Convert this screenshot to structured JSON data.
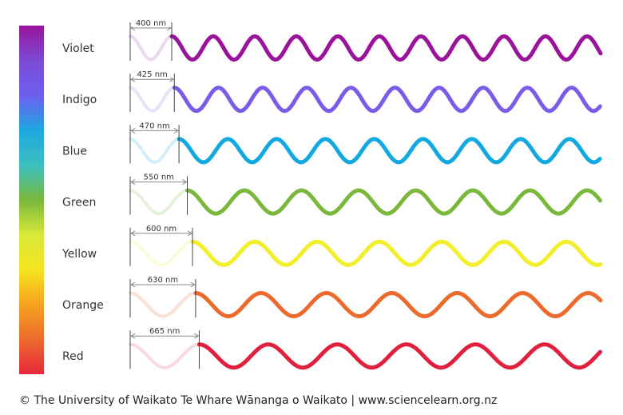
{
  "spectrum_bar": {
    "colors": [
      "#9b139b",
      "#7b4bd6",
      "#6d5ff0",
      "#1ea8e0",
      "#3cc0c0",
      "#7ab83c",
      "#d8e83a",
      "#f5e51f",
      "#f5a21f",
      "#ec6a2c",
      "#e8283c"
    ]
  },
  "waves": [
    {
      "name": "Violet",
      "wavelength": "400 nm",
      "nm": 400,
      "color": "#9b139b",
      "ghost": "#ead9ef"
    },
    {
      "name": "Indigo",
      "wavelength": "425 nm",
      "nm": 425,
      "color": "#7b5ce8",
      "ghost": "#e6e2fb"
    },
    {
      "name": "Blue",
      "wavelength": "470 nm",
      "nm": 470,
      "color": "#12a8e0",
      "ghost": "#d3eef9"
    },
    {
      "name": "Green",
      "wavelength": "550 nm",
      "nm": 550,
      "color": "#7ab83c",
      "ghost": "#e6f1dc"
    },
    {
      "name": "Yellow",
      "wavelength": "600 nm",
      "nm": 600,
      "color": "#f2ee2a",
      "ghost": "#fcfbdb"
    },
    {
      "name": "Orange",
      "wavelength": "630 nm",
      "nm": 630,
      "color": "#ec6a2c",
      "ghost": "#fbe0d6"
    },
    {
      "name": "Red",
      "wavelength": "665 nm",
      "nm": 665,
      "color": "#e0203c",
      "ghost": "#f8d9df"
    }
  ],
  "credit": "© The University of Waikato Te Whare Wānanga o Waikato | www.sciencelearn.org.nz"
}
